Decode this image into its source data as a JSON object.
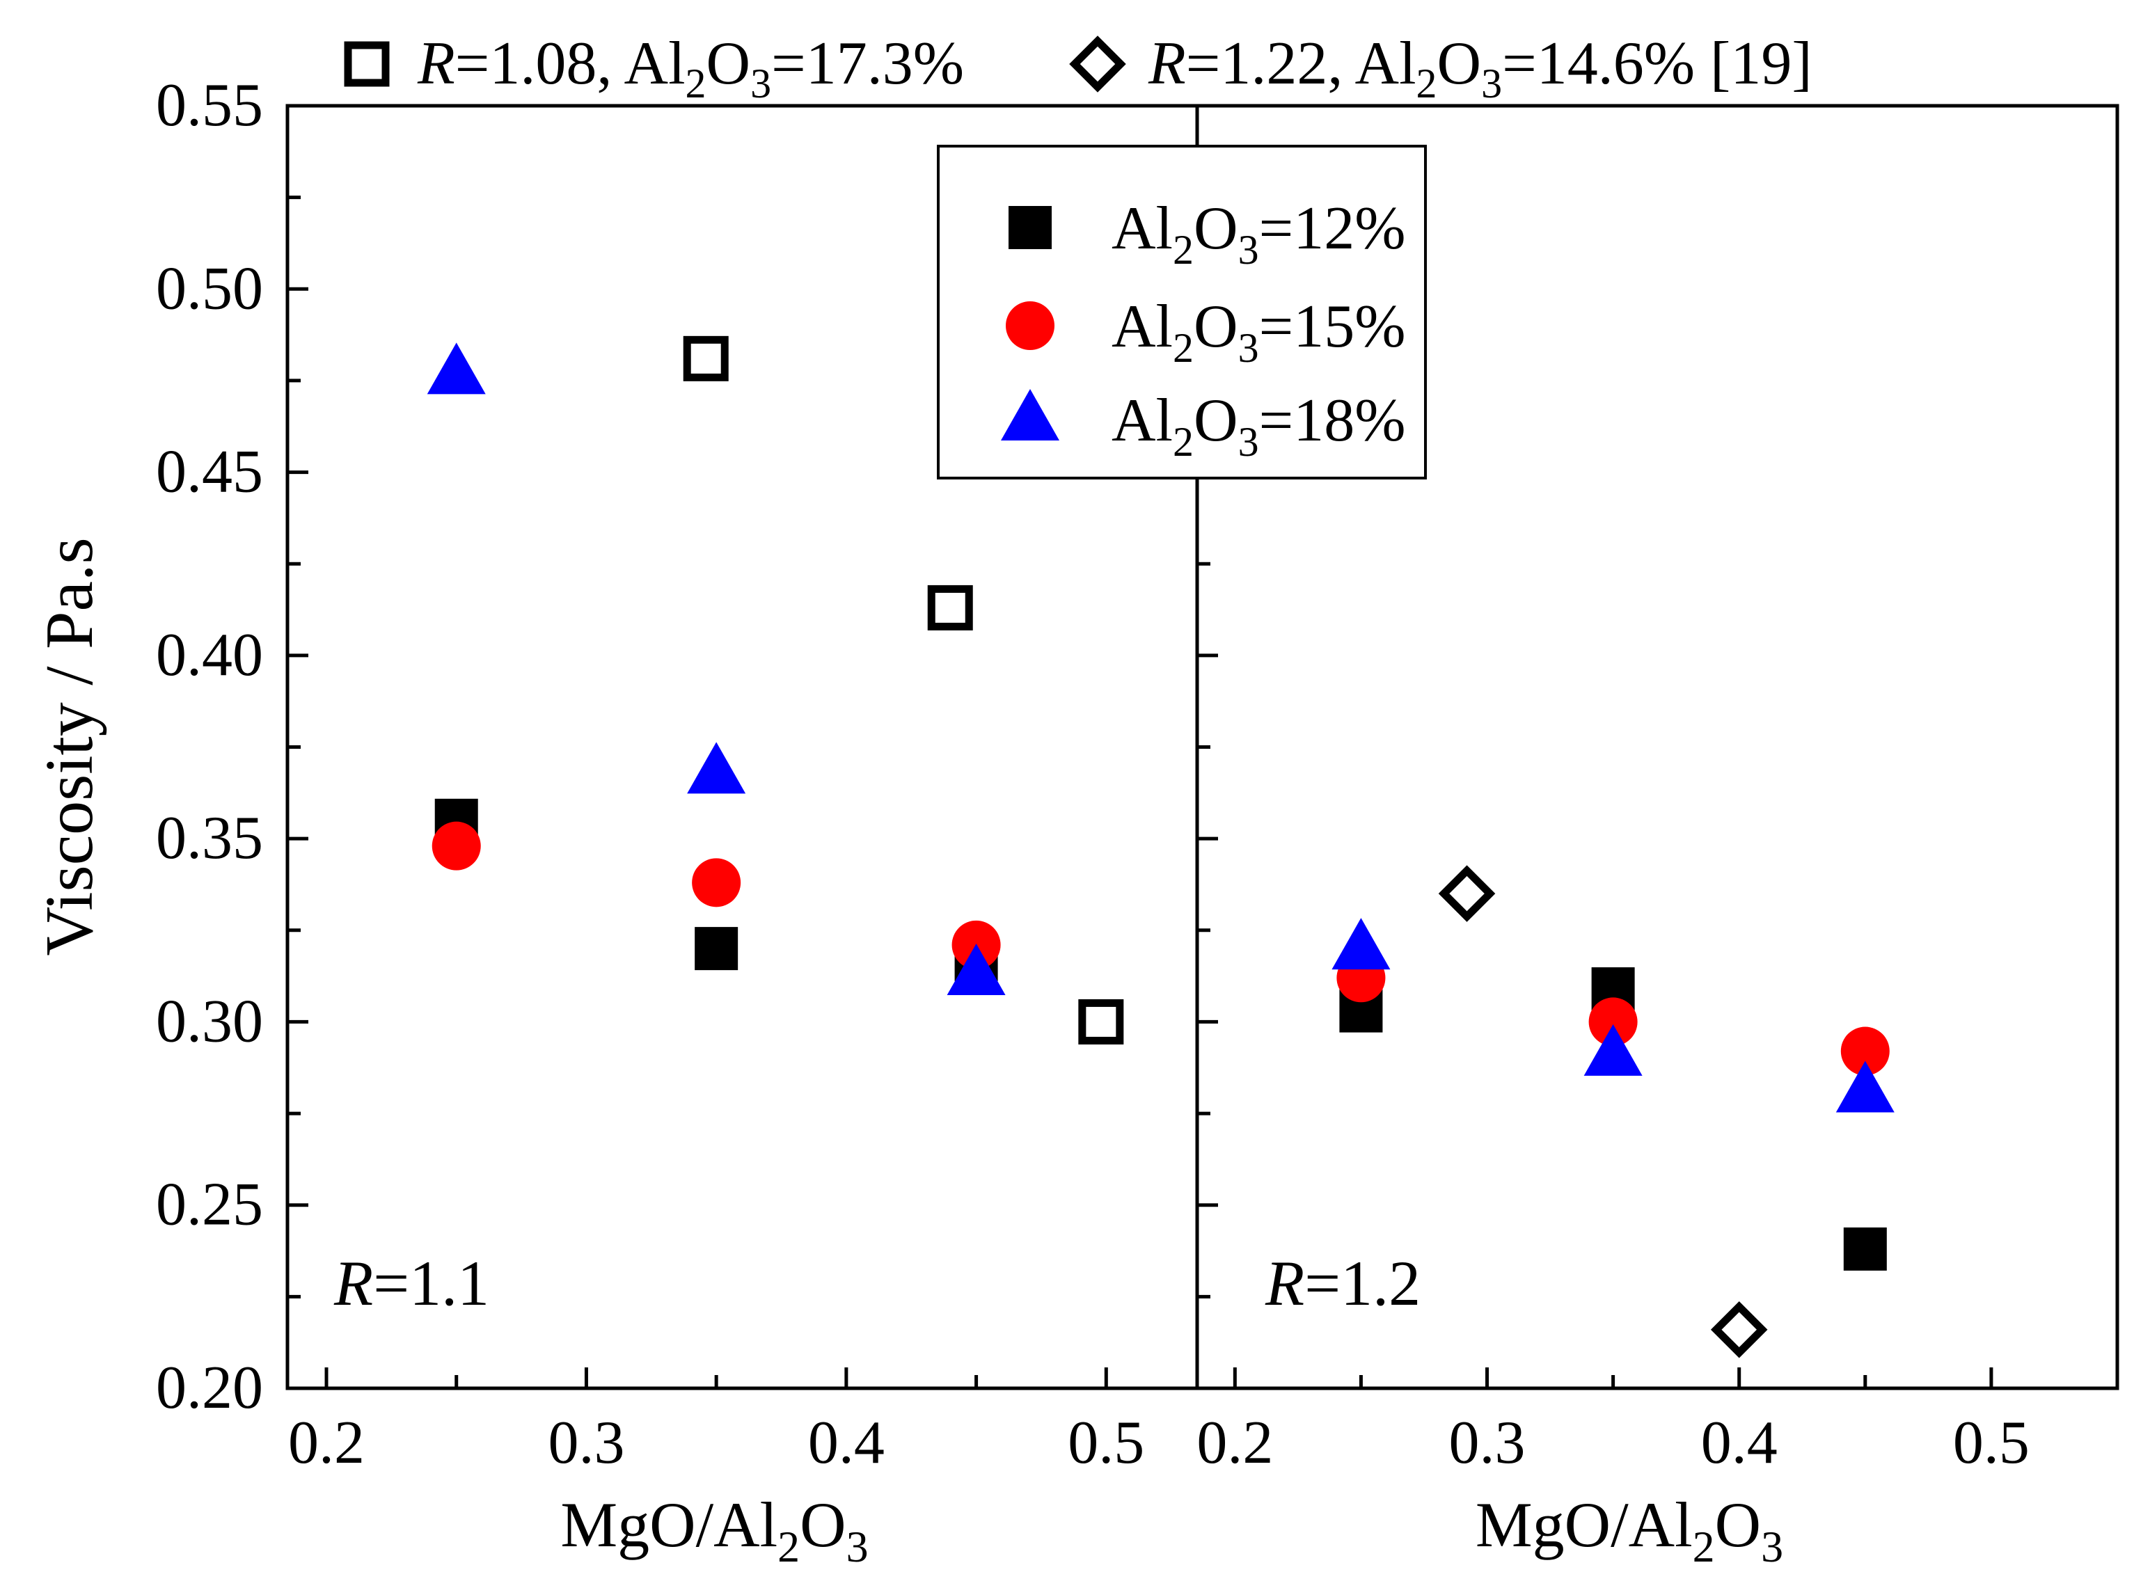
{
  "colors": {
    "black": "#000000",
    "red": "#ff0000",
    "blue": "#0000ff",
    "white": "#ffffff"
  },
  "chart_data": {
    "type": "scatter",
    "ylabel": "Viscosity / Pa.s",
    "ylim": [
      0.2,
      0.55
    ],
    "yticks": [
      "0.20",
      "0.25",
      "0.30",
      "0.35",
      "0.40",
      "0.45",
      "0.50",
      "0.55"
    ],
    "top_legend": [
      {
        "marker": "open-square",
        "italic": "R",
        "text": "=1.08, Al",
        "sub": "2",
        "text2": "O",
        "sub2": "3",
        "text3": "=17.3%"
      },
      {
        "marker": "open-diamond",
        "italic": "R",
        "text": "=1.22, Al",
        "sub": "2",
        "text2": "O",
        "sub2": "3",
        "text3": "=14.6% [19]"
      }
    ],
    "legend": [
      {
        "marker": "filled-square",
        "color": "#000000",
        "text": "Al",
        "sub": "2",
        "text2": "O",
        "sub2": "3",
        "text3": "=12%"
      },
      {
        "marker": "filled-circle",
        "color": "#ff0000",
        "text": "Al",
        "sub": "2",
        "text2": "O",
        "sub2": "3",
        "text3": "=15%"
      },
      {
        "marker": "filled-triangle",
        "color": "#0000ff",
        "text": "Al",
        "sub": "2",
        "text2": "O",
        "sub2": "3",
        "text3": "=18%"
      }
    ],
    "panels": [
      {
        "id": "left",
        "annotation": {
          "italic": "R",
          "text": "=1.1"
        },
        "xlabel": {
          "text": "MgO/Al",
          "sub": "2",
          "text2": "O",
          "sub2": "3"
        },
        "xlim": [
          0.185,
          0.535
        ],
        "xticks": [
          "0.2",
          "0.3",
          "0.4",
          "0.5"
        ],
        "series": [
          {
            "name": "Al2O3=12%",
            "marker": "filled-square",
            "color": "#000000",
            "x": [
              0.25,
              0.35,
              0.45
            ],
            "y": [
              0.355,
              0.32,
              0.317
            ]
          },
          {
            "name": "Al2O3=15%",
            "marker": "filled-circle",
            "color": "#ff0000",
            "x": [
              0.25,
              0.35,
              0.45
            ],
            "y": [
              0.348,
              0.338,
              0.321
            ]
          },
          {
            "name": "Al2O3=18%",
            "marker": "filled-triangle",
            "color": "#0000ff",
            "x": [
              0.25,
              0.35,
              0.45
            ],
            "y": [
              0.477,
              0.368,
              0.313
            ]
          },
          {
            "name": "R=1.08, Al2O3=17.3%",
            "marker": "open-square",
            "color": "#000000",
            "x": [
              0.346,
              0.44,
              0.498
            ],
            "y": [
              0.481,
              0.413,
              0.3
            ]
          }
        ]
      },
      {
        "id": "right",
        "annotation": {
          "italic": "R",
          "text": "=1.2"
        },
        "xlabel": {
          "text": "MgO/Al",
          "sub": "2",
          "text2": "O",
          "sub2": "3"
        },
        "xlim": [
          0.185,
          0.55
        ],
        "xticks": [
          "0.2",
          "0.3",
          "0.4",
          "0.5"
        ],
        "series": [
          {
            "name": "Al2O3=12%",
            "marker": "filled-square",
            "color": "#000000",
            "x": [
              0.25,
              0.35,
              0.45
            ],
            "y": [
              0.303,
              0.309,
              0.238
            ]
          },
          {
            "name": "Al2O3=15%",
            "marker": "filled-circle",
            "color": "#ff0000",
            "x": [
              0.25,
              0.35,
              0.45
            ],
            "y": [
              0.312,
              0.3,
              0.292
            ]
          },
          {
            "name": "Al2O3=18%",
            "marker": "filled-triangle",
            "color": "#0000ff",
            "x": [
              0.25,
              0.35,
              0.45
            ],
            "y": [
              0.32,
              0.291,
              0.281
            ]
          },
          {
            "name": "R=1.22, Al2O3=14.6% [19]",
            "marker": "open-diamond",
            "color": "#000000",
            "x": [
              0.292,
              0.4
            ],
            "y": [
              0.335,
              0.216
            ]
          }
        ]
      }
    ]
  }
}
